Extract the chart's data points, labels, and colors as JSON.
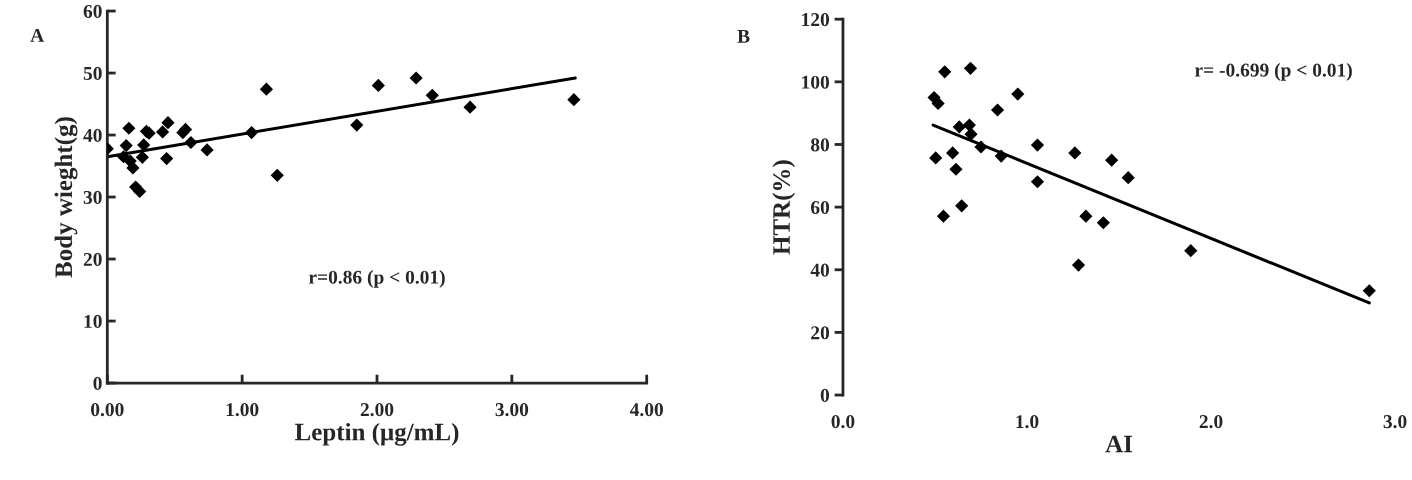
{
  "chart_data": [
    {
      "type": "scatter",
      "xlabel": "Leptin (μg/mL)",
      "ylabel": "Body wieght(g)",
      "annotations": [
        "A",
        "r=0.86 (p < 0.01)"
      ],
      "grid": false,
      "xlim": [
        0,
        4
      ],
      "xticks": [
        {
          "value": 0,
          "label": "0.00"
        },
        {
          "value": 1,
          "label": "1.00"
        },
        {
          "value": 2,
          "label": "2.00"
        },
        {
          "value": 3,
          "label": "3.00"
        },
        {
          "value": 4,
          "label": "4.00"
        }
      ],
      "ylim": [
        0,
        60
      ],
      "yticks": [
        0,
        10,
        20,
        30,
        40,
        50,
        60
      ],
      "series": [
        {
          "marker": "diamond",
          "color": "#000000",
          "x": [
            0.0,
            0.16,
            0.14,
            0.12,
            0.17,
            0.19,
            0.21,
            0.24,
            0.26,
            0.27,
            0.29,
            0.31,
            0.44,
            0.41,
            0.45,
            0.56,
            0.58,
            0.62,
            0.74,
            1.07,
            1.18,
            1.26,
            1.85,
            2.01,
            2.29,
            2.41,
            2.69,
            3.46
          ],
          "values": [
            37.8,
            41.1,
            38.3,
            36.5,
            35.8,
            34.7,
            31.6,
            30.9,
            36.4,
            38.4,
            40.6,
            40.3,
            36.2,
            40.5,
            42.0,
            40.4,
            40.9,
            38.8,
            37.6,
            40.4,
            47.4,
            33.5,
            41.6,
            48.0,
            49.2,
            46.4,
            44.5,
            45.7
          ]
        },
        {
          "type": "line",
          "color": "#000000",
          "x": [
            0.0,
            3.47
          ],
          "values": [
            36.5,
            49.2
          ]
        }
      ]
    },
    {
      "type": "scatter",
      "xlabel": "AI",
      "ylabel": "HTR(%)",
      "annotations": [
        "B",
        "r= -0.699 (p < 0.01)"
      ],
      "grid": false,
      "xlim": [
        0,
        3
      ],
      "xticks": [
        {
          "value": 0,
          "label": "0.0"
        },
        {
          "value": 1,
          "label": "1.0"
        },
        {
          "value": 2,
          "label": "2.0"
        },
        {
          "value": 3,
          "label": "3.0"
        }
      ],
      "ylim": [
        0,
        120
      ],
      "yticks": [
        0,
        20,
        40,
        60,
        80,
        100,
        120
      ],
      "series": [
        {
          "marker": "diamond",
          "color": "#000000",
          "x": [
            0.553,
            0.693,
            0.495,
            0.517,
            0.84,
            0.95,
            0.632,
            0.687,
            0.696,
            0.75,
            0.596,
            0.504,
            0.86,
            0.614,
            1.057,
            1.26,
            1.46,
            1.55,
            1.057,
            0.645,
            0.546,
            1.32,
            1.415,
            1.28,
            1.89,
            2.86
          ],
          "values": [
            103.2,
            104.3,
            95.0,
            93.1,
            91.0,
            96.1,
            85.6,
            86.2,
            83.3,
            79.2,
            77.3,
            75.7,
            76.3,
            72.1,
            79.8,
            77.3,
            75.0,
            69.4,
            68.1,
            60.4,
            57.1,
            57.1,
            55.0,
            41.5,
            46.1,
            33.3
          ]
        },
        {
          "type": "line",
          "color": "#000000",
          "x": [
            0.49,
            2.86
          ],
          "values": [
            86.2,
            29.4
          ]
        }
      ]
    }
  ]
}
